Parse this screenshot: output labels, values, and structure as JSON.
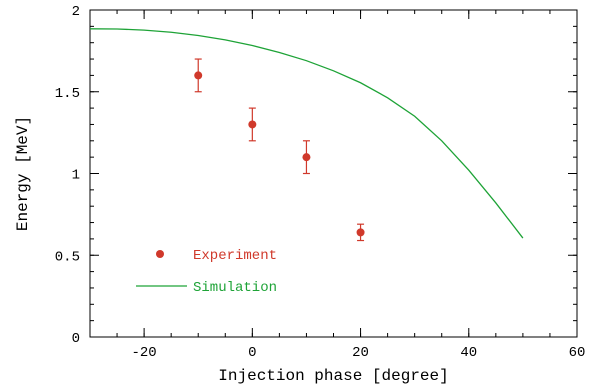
{
  "chart_data": {
    "type": "scatter",
    "xlabel": "Injection phase  [degree]",
    "ylabel": "Energy  [MeV]",
    "xlim": [
      -30,
      60
    ],
    "ylim": [
      0,
      2
    ],
    "x_ticks": [
      -20,
      0,
      20,
      40,
      60
    ],
    "x_tick_labels": [
      "-20",
      "0",
      "20",
      "40",
      "60"
    ],
    "y_ticks": [
      0,
      0.5,
      1,
      1.5,
      2
    ],
    "y_tick_labels": [
      "0",
      "0.5",
      "1",
      "1.5",
      "2"
    ],
    "x_minor_step": 5,
    "y_minor_step": 0.1,
    "grid": false,
    "legend_position": "bottom-left",
    "series": [
      {
        "name": "Experiment",
        "kind": "points-with-error",
        "color": "#d0392b",
        "x": [
          -10,
          0,
          10,
          20
        ],
        "y": [
          1.6,
          1.3,
          1.1,
          0.64
        ],
        "err": [
          0.1,
          0.1,
          0.1,
          0.05
        ]
      },
      {
        "name": "Simulation",
        "kind": "line",
        "color": "#1ea337",
        "x": [
          -30,
          -25,
          -20,
          -15,
          -10,
          -5,
          0,
          5,
          10,
          15,
          20,
          25,
          30,
          35,
          40,
          45,
          50
        ],
        "y": [
          1.885,
          1.884,
          1.877,
          1.864,
          1.844,
          1.817,
          1.783,
          1.74,
          1.69,
          1.628,
          1.555,
          1.463,
          1.35,
          1.2,
          1.02,
          0.82,
          0.605
        ]
      }
    ]
  }
}
